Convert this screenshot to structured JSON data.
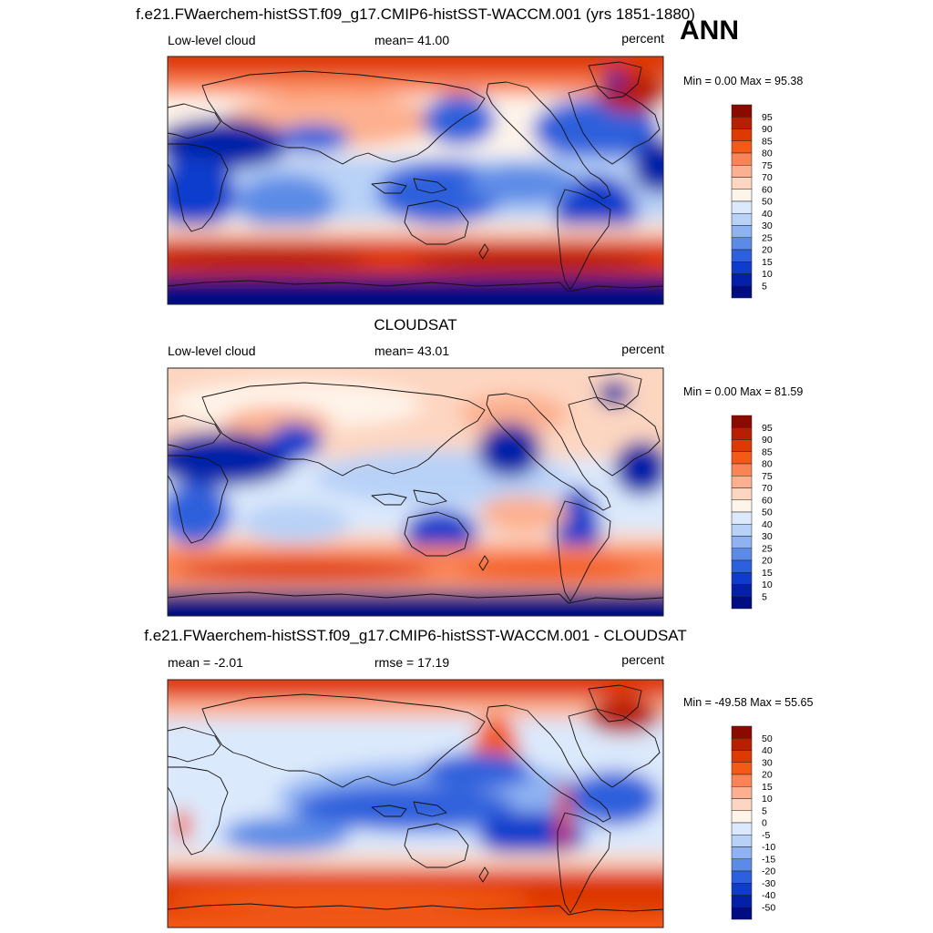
{
  "season": "ANN",
  "chart_data": [
    {
      "type": "heatmap",
      "title": "f.e21.FWaerchem-histSST.f09_g17.CMIP6-histSST-WACCM.001 (yrs 1851-1880)",
      "variable": "Low-level cloud",
      "stat_text": "mean=  41.00",
      "mean": 41.0,
      "units": "percent",
      "minmax_text": "Min =   0.00 Max =  95.38",
      "min": 0.0,
      "max": 95.38,
      "colorbar_labels": [
        "95",
        "90",
        "85",
        "80",
        "75",
        "70",
        "60",
        "50",
        "40",
        "30",
        "25",
        "20",
        "15",
        "10",
        "5"
      ],
      "colorbar_colors": [
        "#8a0a00",
        "#b81e00",
        "#de3900",
        "#f35a18",
        "#fa8455",
        "#fdb08f",
        "#fdd6c1",
        "#fef4ea",
        "#dbe9fc",
        "#b8d1f7",
        "#8eb2f2",
        "#5b8be6",
        "#2d60dc",
        "#0f3ccc",
        "#0420a8",
        "#000d82"
      ]
    },
    {
      "type": "heatmap",
      "title": "CLOUDSAT",
      "variable": "Low-level cloud",
      "stat_text": "mean=  43.01",
      "mean": 43.01,
      "units": "percent",
      "minmax_text": "Min =   0.00 Max =  81.59",
      "min": 0.0,
      "max": 81.59,
      "colorbar_labels": [
        "95",
        "90",
        "85",
        "80",
        "75",
        "70",
        "60",
        "50",
        "40",
        "30",
        "25",
        "20",
        "15",
        "10",
        "5"
      ],
      "colorbar_colors": [
        "#8a0a00",
        "#b81e00",
        "#de3900",
        "#f35a18",
        "#fa8455",
        "#fdb08f",
        "#fdd6c1",
        "#fef4ea",
        "#dbe9fc",
        "#b8d1f7",
        "#8eb2f2",
        "#5b8be6",
        "#2d60dc",
        "#0f3ccc",
        "#0420a8",
        "#000d82"
      ]
    },
    {
      "type": "heatmap",
      "title": "f.e21.FWaerchem-histSST.f09_g17.CMIP6-histSST-WACCM.001 - CLOUDSAT",
      "left_text": "mean =  -2.01",
      "stat_text": "rmse =  17.19",
      "mean": -2.01,
      "rmse": 17.19,
      "units": "percent",
      "minmax_text": "Min = -49.58 Max =  55.65",
      "min": -49.58,
      "max": 55.65,
      "colorbar_labels": [
        "50",
        "40",
        "30",
        "20",
        "15",
        "10",
        "5",
        "0",
        "-5",
        "-10",
        "-15",
        "-20",
        "-30",
        "-40",
        "-50"
      ],
      "colorbar_colors": [
        "#8a0a00",
        "#b81e00",
        "#de3900",
        "#f35a18",
        "#fa8455",
        "#fdb08f",
        "#fdd6c1",
        "#fef4ea",
        "#dbe9fc",
        "#b8d1f7",
        "#8eb2f2",
        "#5b8be6",
        "#2d60dc",
        "#0f3ccc",
        "#0420a8",
        "#000d82"
      ]
    }
  ]
}
